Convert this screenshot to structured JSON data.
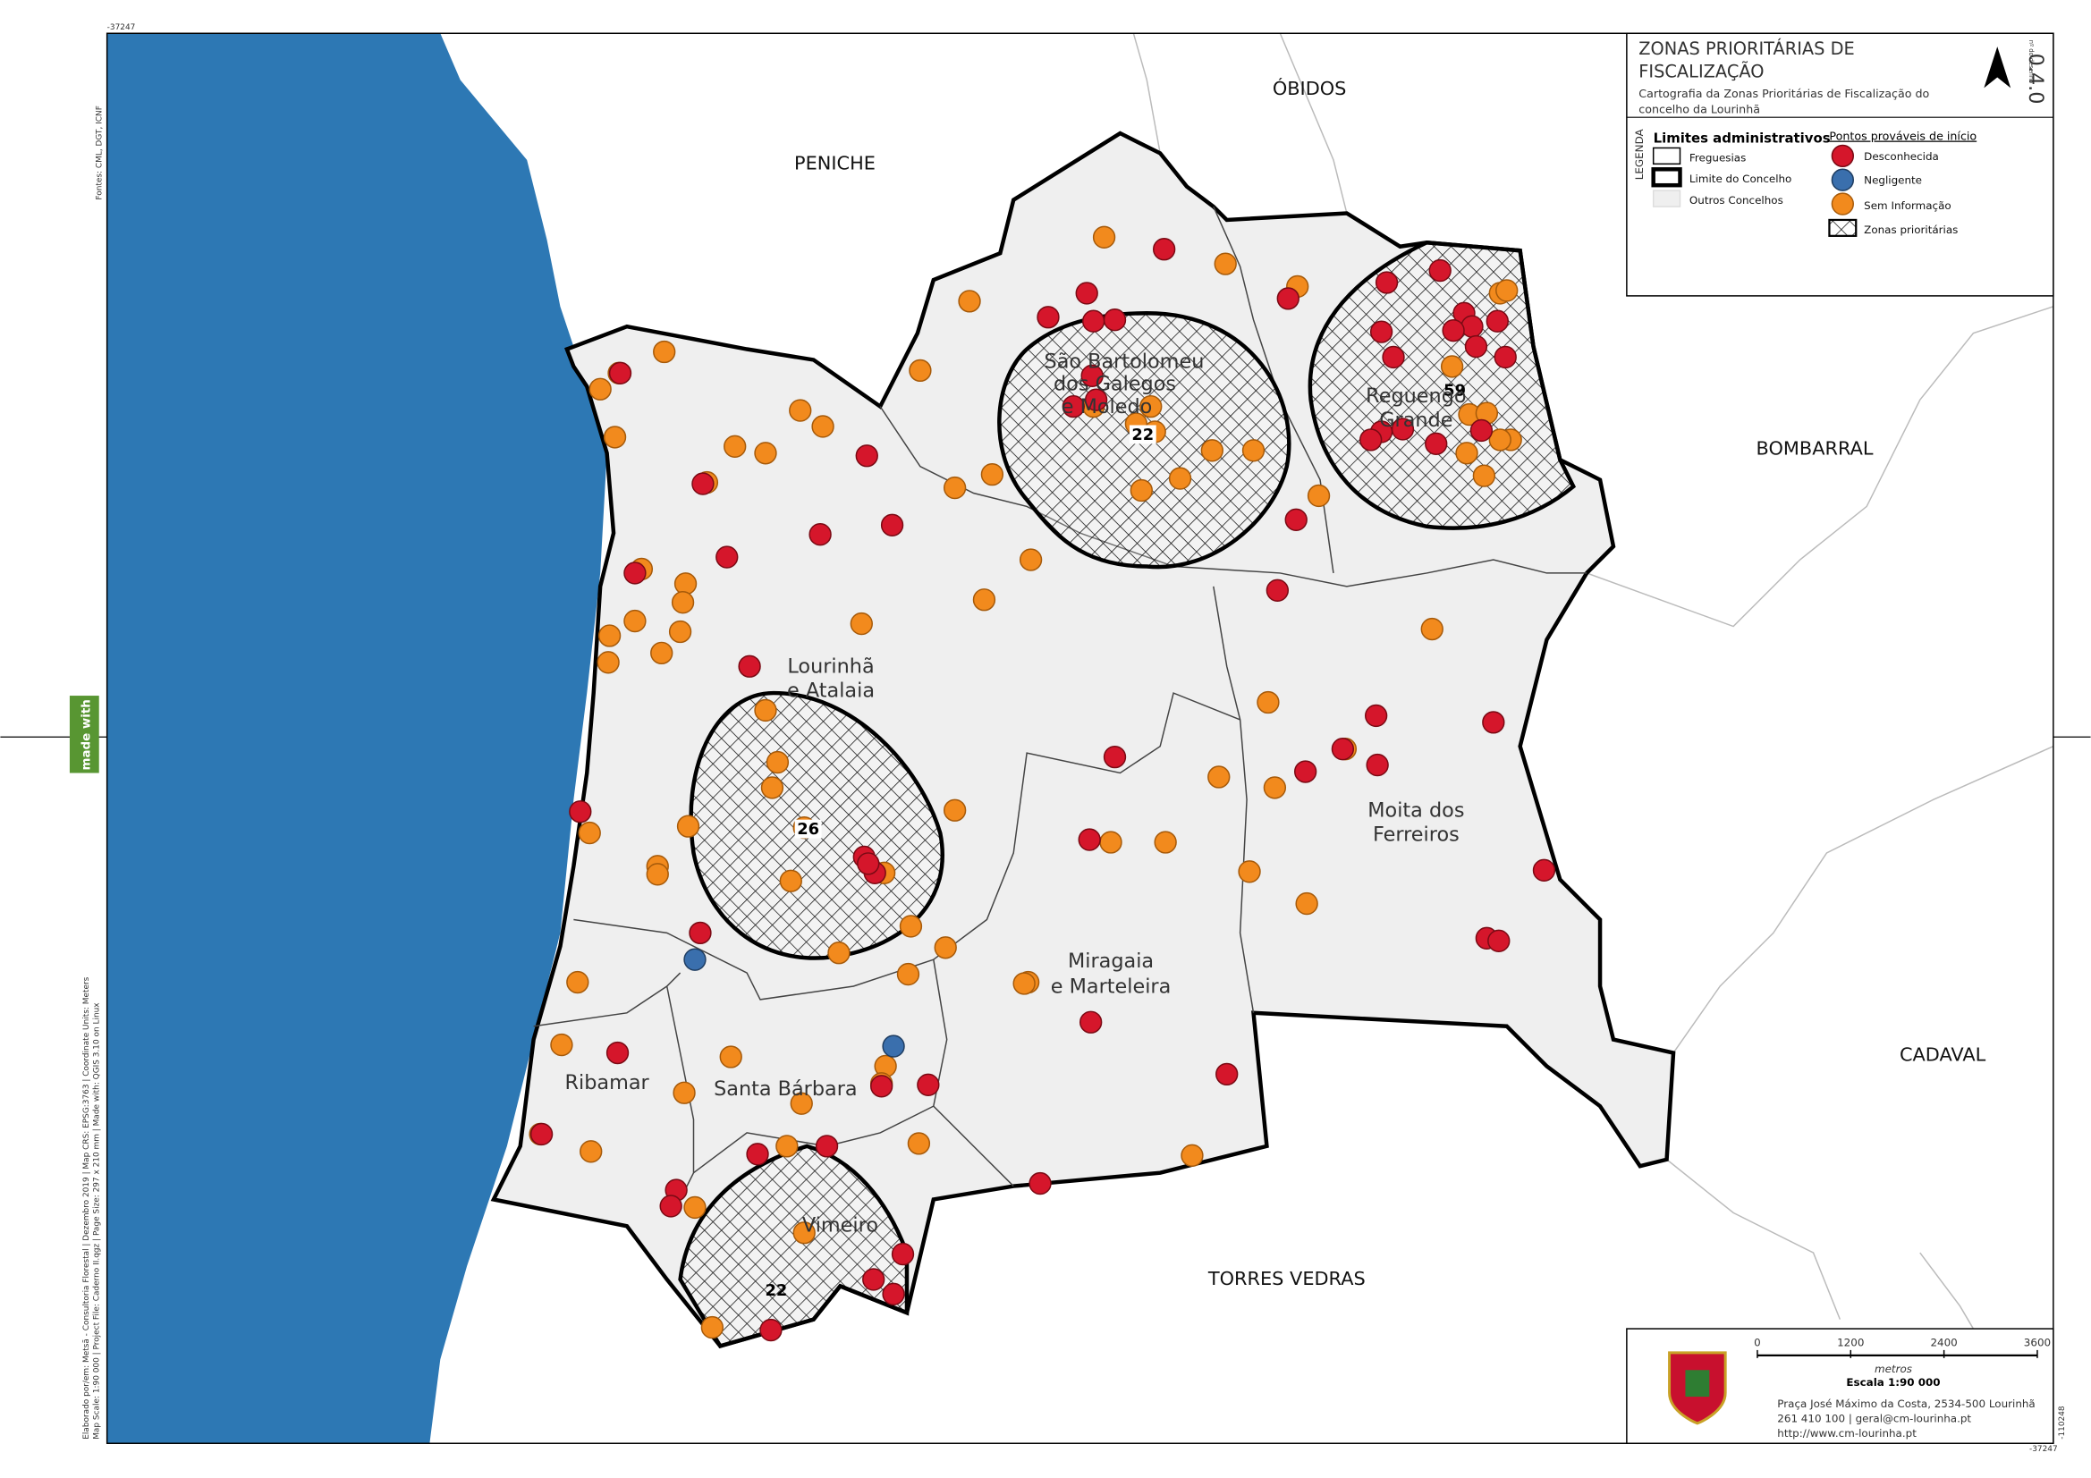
{
  "header": {
    "title_lines": [
      "ZONAS PRIORITÁRIAS DE",
      "FISCALIZAÇÃO"
    ],
    "subtitle_lines": [
      "Cartografia da Zonas Prioritárias de Fiscalização do",
      "concelho da Lourinhã"
    ],
    "drawing_number_label": "nº do desenho",
    "drawing_number": "0.4.0"
  },
  "legend": {
    "label": "LEGENDA",
    "admin_title": "Limites administrativos",
    "admin_items": [
      "Freguesias",
      "Limite do Concelho",
      "Outros Concelhos"
    ],
    "points_title": "Pontos prováveis de início",
    "point_items": [
      "Desconhecida",
      "Negligente",
      "Sem Informação"
    ],
    "zones_item": "Zonas prioritárias"
  },
  "neighbors": [
    "PENICHE",
    "ÓBIDOS",
    "BOMBARRAL",
    "CADAVAL",
    "TORRES VEDRAS"
  ],
  "parishes": [
    [
      "São Bartolomeu",
      "dos Galegos",
      "e Moledo"
    ],
    [
      "Reguengo",
      "Grande"
    ],
    [
      "Lourinhã",
      "e Atalaia"
    ],
    [
      "Moita dos",
      "Ferreiros"
    ],
    [
      "Miragaia",
      "e Marteleira"
    ],
    [
      "Ribamar"
    ],
    [
      "Santa Bárbara"
    ],
    [
      "Vimeiro"
    ]
  ],
  "zones": [
    {
      "count": 22
    },
    {
      "count": 59
    },
    {
      "count": 26
    },
    {
      "count": 22
    }
  ],
  "scale": {
    "ticks": [
      0,
      1200,
      2400,
      3600
    ],
    "unit": "metros",
    "label": "Escala 1:90 000"
  },
  "contact": [
    "Praça José Máximo da Costa, 2534-500 Lourinhã",
    "261 410 100 | geral@cm-lourinha.pt",
    "http://www.cm-lourinha.pt"
  ],
  "sources": "Fontes: CML, DGT, ICNF",
  "credits": [
    "Elaborado por/em: Metsã - Consultoria Florestal | Dezembro 2019 | Map CRS: EPSG:3763 | Coordinate Units: Meters",
    "Map Scale: 1:90 000 | Project File: Caderno II.qgz | Page Size: 297 x 210 mm | Made with: QGIS 3.10 on Linux"
  ],
  "made_with": "made with QGIS",
  "frame_labels": [
    "-37247",
    "-110248"
  ]
}
